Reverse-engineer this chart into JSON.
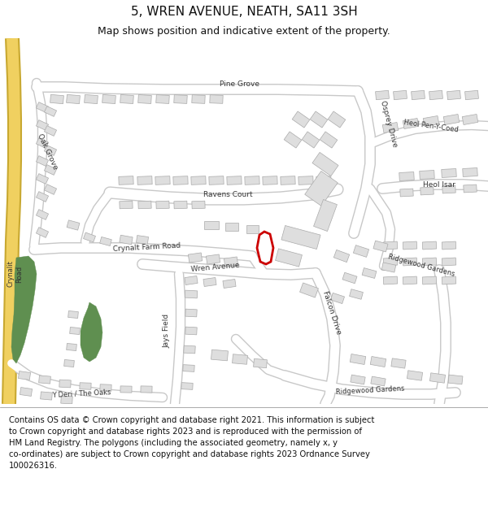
{
  "title": "5, WREN AVENUE, NEATH, SA11 3SH",
  "subtitle": "Map shows position and indicative extent of the property.",
  "footer": "Contains OS data © Crown copyright and database right 2021. This information is subject\nto Crown copyright and database rights 2023 and is reproduced with the permission of\nHM Land Registry. The polygons (including the associated geometry, namely x, y\nco-ordinates) are subject to Crown copyright and database rights 2023 Ordnance Survey\n100026316.",
  "bg_color": "#ffffff",
  "map_bg": "#ffffff",
  "road_color": "#ffffff",
  "road_outline": "#c8c8c8",
  "building_fill": "#dedede",
  "building_outline": "#aaaaaa",
  "green_color": "#5f8f50",
  "yellow_fill": "#f0d060",
  "yellow_outline": "#c8a830",
  "property_color": "#cc0000",
  "title_fontsize": 11,
  "subtitle_fontsize": 9,
  "footer_fontsize": 7.2,
  "label_fontsize": 6.5,
  "label_color": "#333333"
}
